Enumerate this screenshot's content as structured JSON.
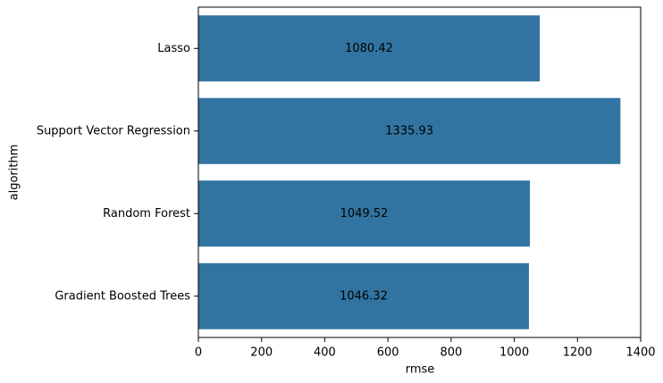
{
  "chart_data": {
    "type": "barh",
    "xlabel": "rmse",
    "ylabel": "algorithm",
    "categories": [
      "Lasso",
      "Support Vector Regression",
      "Random Forest",
      "Gradient Boosted Trees"
    ],
    "values": [
      1080.42,
      1335.93,
      1049.52,
      1046.32
    ],
    "color": "#3274a1",
    "xlim": [
      0,
      1400
    ],
    "xticks": [
      0,
      200,
      400,
      600,
      800,
      1000,
      1200,
      1400
    ],
    "data_labels": true
  }
}
